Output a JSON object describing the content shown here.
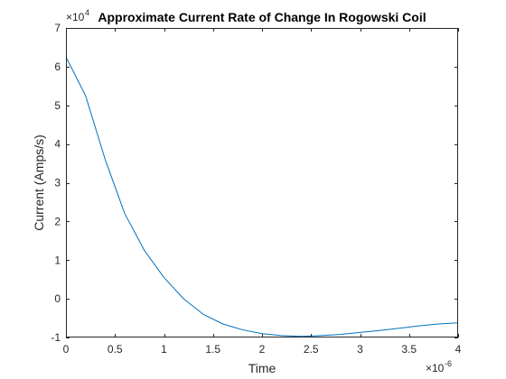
{
  "chart_data": {
    "type": "line",
    "title": "Approximate Current Rate of Change In Rogowski Coil",
    "xlabel": "Time",
    "ylabel": "Current (Amps/s)",
    "x_multiplier": {
      "base": "×10",
      "exponent": "-6"
    },
    "y_multiplier": {
      "base": "×10",
      "exponent": "4"
    },
    "xlim": [
      0,
      4
    ],
    "ylim": [
      -1,
      7
    ],
    "x_ticks": [
      0,
      0.5,
      1,
      1.5,
      2,
      2.5,
      3,
      3.5,
      4
    ],
    "x_tick_labels": [
      "0",
      "0.5",
      "1",
      "1.5",
      "2",
      "2.5",
      "3",
      "3.5",
      "4"
    ],
    "y_ticks": [
      -1,
      0,
      1,
      2,
      3,
      4,
      5,
      6,
      7
    ],
    "y_tick_labels": [
      "-1",
      "0",
      "1",
      "2",
      "3",
      "4",
      "5",
      "6",
      "7"
    ],
    "grid": false,
    "series": [
      {
        "color": "#0072BD",
        "x": [
          0,
          0.2,
          0.4,
          0.6,
          0.8,
          1.0,
          1.2,
          1.4,
          1.6,
          1.8,
          2.0,
          2.2,
          2.4,
          2.6,
          2.8,
          3.0,
          3.2,
          3.4,
          3.6,
          3.8,
          4.0
        ],
        "y": [
          6.25,
          5.25,
          3.6,
          2.2,
          1.25,
          0.55,
          0.0,
          -0.4,
          -0.65,
          -0.8,
          -0.9,
          -0.95,
          -0.97,
          -0.95,
          -0.92,
          -0.87,
          -0.82,
          -0.76,
          -0.7,
          -0.65,
          -0.62
        ]
      }
    ]
  }
}
